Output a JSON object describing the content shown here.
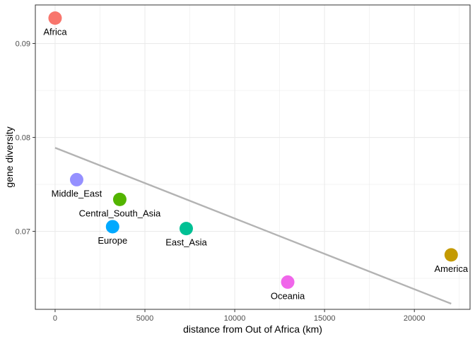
{
  "chart_data": {
    "type": "scatter",
    "title": "",
    "xlabel": "distance from Out of Africa (km)",
    "ylabel": "gene diversity",
    "xlim": [
      -1100,
      23100
    ],
    "ylim": [
      0.0617,
      0.0941
    ],
    "x_ticks": [
      0,
      5000,
      10000,
      15000,
      20000
    ],
    "y_ticks": [
      0.07,
      0.08,
      0.09
    ],
    "y_tick_labels": [
      "0.07",
      "0.08",
      "0.09"
    ],
    "grid": true,
    "legend": "none",
    "points": [
      {
        "label": "Africa",
        "x": 0,
        "y": 0.0927,
        "color": "#F8766D"
      },
      {
        "label": "Middle_East",
        "x": 1200,
        "y": 0.0755,
        "color": "#9590FF"
      },
      {
        "label": "Central_South_Asia",
        "x": 3600,
        "y": 0.0734,
        "color": "#53B400"
      },
      {
        "label": "Europe",
        "x": 3200,
        "y": 0.0705,
        "color": "#00A9FF"
      },
      {
        "label": "East_Asia",
        "x": 7300,
        "y": 0.0703,
        "color": "#00C094"
      },
      {
        "label": "Oceania",
        "x": 12950,
        "y": 0.0646,
        "color": "#F066EA"
      },
      {
        "label": "America",
        "x": 22050,
        "y": 0.0675,
        "color": "#C49A00"
      }
    ],
    "trend_line": {
      "x": [
        0,
        22050
      ],
      "y": [
        0.0789,
        0.0623
      ],
      "color": "#b3b3b3"
    }
  }
}
